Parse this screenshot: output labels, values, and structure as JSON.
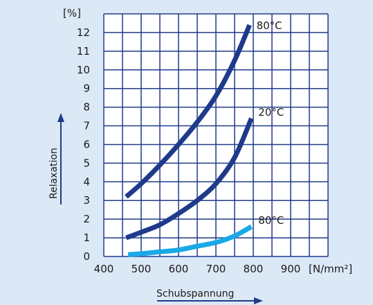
{
  "chart_data": {
    "type": "line",
    "ylabel": "Relaxation",
    "xlabel": "Schubspannung",
    "y_unit": "[%]",
    "x_unit": "[N/mm²]",
    "xlim": [
      400,
      1000
    ],
    "ylim": [
      0,
      13
    ],
    "x_ticks": [
      "400",
      "500",
      "600",
      "700",
      "800",
      "900"
    ],
    "y_ticks": [
      "0",
      "1",
      "2",
      "3",
      "4",
      "5",
      "6",
      "7",
      "8",
      "9",
      "10",
      "11",
      "12"
    ],
    "grid": true,
    "series": [
      {
        "name": "80°C",
        "color": "#1f3a8a",
        "x": [
          460,
          500,
          550,
          600,
          650,
          700,
          750,
          790
        ],
        "y": [
          3.2,
          3.9,
          4.9,
          6.0,
          7.2,
          8.6,
          10.5,
          12.4
        ]
      },
      {
        "name": "20°C",
        "color": "#1f3a8a",
        "x": [
          460,
          500,
          550,
          600,
          650,
          700,
          750,
          795
        ],
        "y": [
          1.0,
          1.3,
          1.7,
          2.3,
          3.0,
          3.9,
          5.3,
          7.4
        ]
      },
      {
        "name": "80°C",
        "color": "#19a9e6",
        "x": [
          465,
          500,
          550,
          600,
          650,
          700,
          750,
          795
        ],
        "y": [
          0.1,
          0.15,
          0.25,
          0.35,
          0.55,
          0.75,
          1.1,
          1.6
        ]
      }
    ]
  }
}
